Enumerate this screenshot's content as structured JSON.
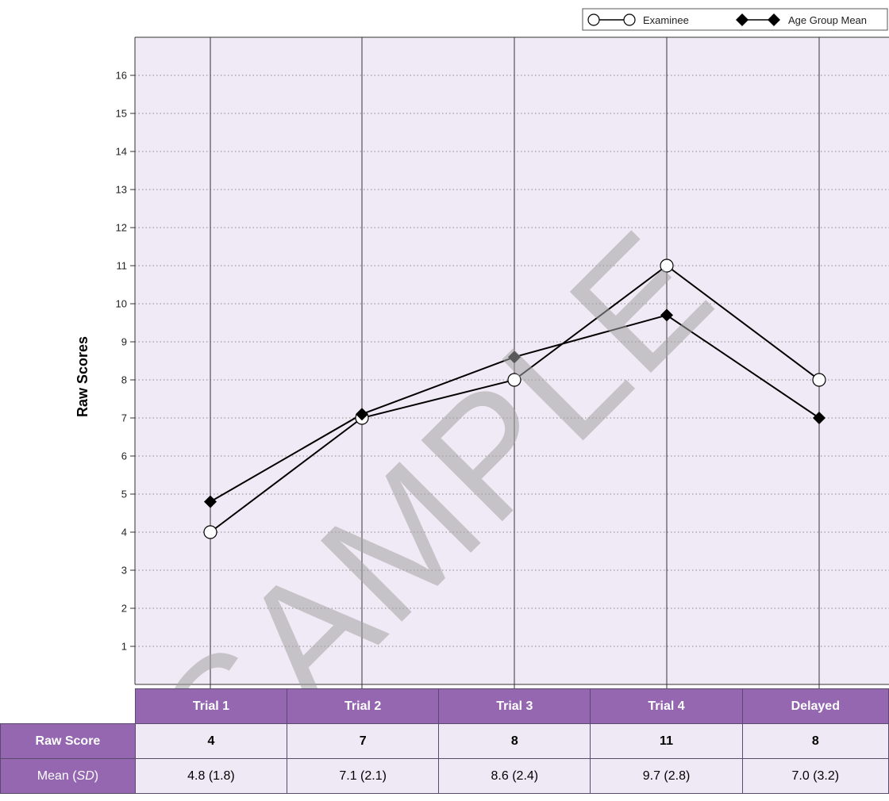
{
  "legend": {
    "examinee": "Examinee",
    "mean": "Age Group Mean"
  },
  "chart_data": {
    "type": "line",
    "ylabel": "Raw Scores",
    "xlabel": "",
    "categories": [
      "Trial 1",
      "Trial 2",
      "Trial 3",
      "Trial 4",
      "Delayed"
    ],
    "ylim": [
      0,
      17
    ],
    "yticks": [
      1,
      2,
      3,
      4,
      5,
      6,
      7,
      8,
      9,
      10,
      11,
      12,
      13,
      14,
      15,
      16
    ],
    "grid": true,
    "legend_position": "top-right",
    "series": [
      {
        "name": "Examinee",
        "marker": "open-circle",
        "values": [
          4,
          7,
          8,
          11,
          8
        ]
      },
      {
        "name": "Age Group Mean",
        "marker": "filled-diamond",
        "values": [
          4.8,
          7.1,
          8.6,
          9.7,
          7.0
        ]
      }
    ]
  },
  "table": {
    "headers": [
      "Trial 1",
      "Trial 2",
      "Trial 3",
      "Trial 4",
      "Delayed"
    ],
    "raw_score_label": "Raw Score",
    "raw_scores": [
      "4",
      "7",
      "8",
      "11",
      "8"
    ],
    "mean_label_prefix": "Mean (",
    "mean_label_sd": "SD",
    "mean_label_suffix": ")",
    "means": [
      "4.8 (1.8)",
      "7.1 (2.1)",
      "8.6 (2.4)",
      "9.7 (2.8)",
      "7.0 (3.2)"
    ]
  },
  "watermark": "SAMPLE",
  "colors": {
    "plot_bg": "#f0eaf6",
    "header_bg": "#9467b0",
    "cell_bg": "#efe9f6",
    "line": "#000000",
    "watermark": "#a3a3a3"
  }
}
